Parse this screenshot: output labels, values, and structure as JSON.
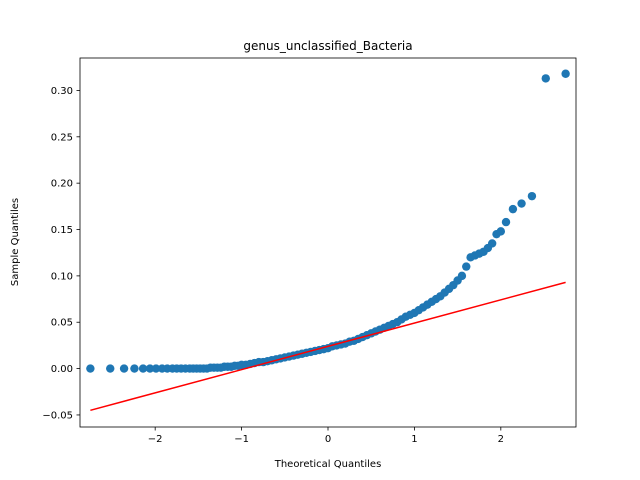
{
  "chart_data": {
    "type": "scatter",
    "title": "genus_unclassified_Bacteria",
    "xlabel": "Theoretical Quantiles",
    "ylabel": "Sample Quantiles",
    "xlim": [
      -2.87,
      2.87
    ],
    "ylim": [
      -0.063,
      0.335
    ],
    "xticks": [
      -2,
      -1,
      0,
      1,
      2
    ],
    "xtick_labels": [
      "−2",
      "−1",
      "0",
      "1",
      "2"
    ],
    "yticks": [
      -0.05,
      0.0,
      0.05,
      0.1,
      0.15,
      0.2,
      0.25,
      0.3
    ],
    "ytick_labels": [
      "−0.05",
      "0.00",
      "0.05",
      "0.10",
      "0.15",
      "0.20",
      "0.25",
      "0.30"
    ],
    "grid": false,
    "colors": {
      "points": "#1f77b4",
      "line": "#ff0000"
    },
    "series": [
      {
        "kind": "points",
        "x": [
          -2.75,
          -2.52,
          -2.36,
          -2.24,
          -2.14,
          -2.06,
          -1.99,
          -1.92,
          -1.86,
          -1.8,
          -1.75,
          -1.7,
          -1.65,
          -1.6,
          -1.56,
          -1.52,
          -1.48,
          -1.44,
          -1.4,
          -1.36,
          -1.32,
          -1.28,
          -1.24,
          -1.2,
          -1.16,
          -1.12,
          -1.08,
          -1.04,
          -1.0,
          -0.95,
          -0.9,
          -0.85,
          -0.8,
          -0.75,
          -0.7,
          -0.65,
          -0.6,
          -0.55,
          -0.5,
          -0.45,
          -0.4,
          -0.35,
          -0.3,
          -0.25,
          -0.2,
          -0.15,
          -0.1,
          -0.05,
          0.0,
          0.05,
          0.1,
          0.15,
          0.2,
          0.25,
          0.3,
          0.35,
          0.4,
          0.45,
          0.5,
          0.55,
          0.6,
          0.65,
          0.7,
          0.75,
          0.8,
          0.85,
          0.9,
          0.95,
          1.0,
          1.05,
          1.1,
          1.15,
          1.2,
          1.25,
          1.3,
          1.35,
          1.4,
          1.45,
          1.5,
          1.55,
          1.6,
          1.65,
          1.7,
          1.75,
          1.8,
          1.85,
          1.9,
          1.95,
          2.0,
          2.06,
          2.14,
          2.24,
          2.36,
          2.52,
          2.75
        ],
        "y": [
          0.0,
          0.0,
          0.0,
          0.0,
          0.0,
          0.0,
          0.0,
          0.0,
          0.0,
          0.0,
          0.0,
          0.0,
          0.0,
          0.0,
          0.0,
          0.0,
          0.0,
          0.0,
          0.0,
          0.001,
          0.001,
          0.001,
          0.001,
          0.002,
          0.002,
          0.002,
          0.003,
          0.003,
          0.004,
          0.004,
          0.005,
          0.006,
          0.007,
          0.007,
          0.008,
          0.009,
          0.01,
          0.011,
          0.012,
          0.013,
          0.014,
          0.015,
          0.016,
          0.017,
          0.018,
          0.019,
          0.02,
          0.021,
          0.022,
          0.024,
          0.025,
          0.026,
          0.027,
          0.029,
          0.03,
          0.032,
          0.034,
          0.036,
          0.038,
          0.04,
          0.042,
          0.044,
          0.046,
          0.048,
          0.05,
          0.053,
          0.056,
          0.058,
          0.06,
          0.063,
          0.066,
          0.069,
          0.072,
          0.075,
          0.078,
          0.082,
          0.086,
          0.09,
          0.095,
          0.1,
          0.11,
          0.12,
          0.122,
          0.124,
          0.126,
          0.13,
          0.135,
          0.145,
          0.148,
          0.158,
          0.172,
          0.178,
          0.186,
          0.313,
          0.318
        ]
      },
      {
        "kind": "line",
        "x": [
          -2.75,
          2.75
        ],
        "y": [
          -0.045,
          0.093
        ]
      }
    ]
  }
}
